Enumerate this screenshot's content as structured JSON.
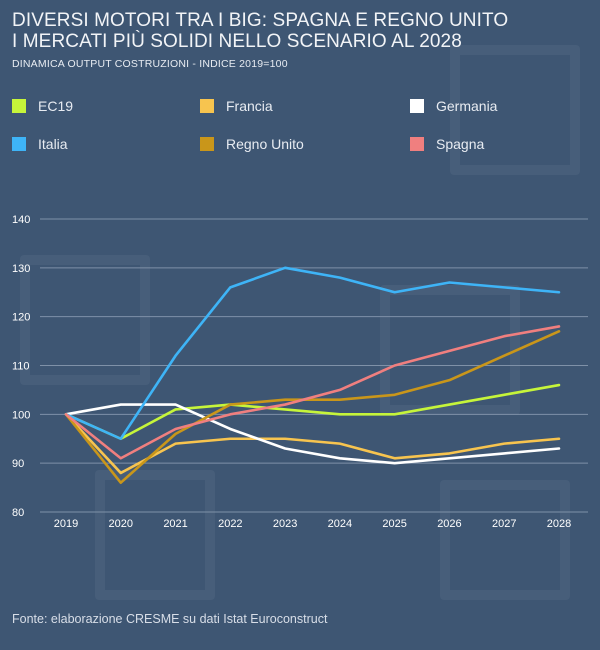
{
  "header": {
    "title_line1": "DIVERSI MOTORI TRA I BIG: SPAGNA E REGNO UNITO",
    "title_line2": "I MERCATI PIÙ SOLIDI NELLO SCENARIO AL 2028",
    "subtitle": "DINAMICA OUTPUT COSTRUZIONI - INDICE 2019=100"
  },
  "source": "Fonte: elaborazione CRESME su dati Istat Euroconstruct",
  "colors": {
    "background": "#3e5673",
    "grid": "#7f91a8",
    "axis_text": "#ffffff"
  },
  "chart_data": {
    "type": "line",
    "title": "DIVERSI MOTORI TRA I BIG: SPAGNA E REGNO UNITO I MERCATI PIÙ SOLIDI NELLO SCENARIO AL 2028",
    "subtitle": "DINAMICA OUTPUT COSTRUZIONI - INDICE 2019=100",
    "x": [
      "2019",
      "2020",
      "2021",
      "2022",
      "2023",
      "2024",
      "2025",
      "2026",
      "2027",
      "2028"
    ],
    "yticks": [
      80,
      90,
      100,
      110,
      120,
      130,
      140
    ],
    "ylim": [
      80,
      140
    ],
    "grid": true,
    "legend_position": "top",
    "series": [
      {
        "name": "EC19",
        "color": "#c6f53a",
        "values": [
          100,
          95,
          101,
          102,
          101,
          100,
          100,
          102,
          104,
          106
        ]
      },
      {
        "name": "Francia",
        "color": "#f7c44f",
        "values": [
          100,
          88,
          94,
          95,
          95,
          94,
          91,
          92,
          94,
          95
        ]
      },
      {
        "name": "Germania",
        "color": "#ffffff",
        "values": [
          100,
          102,
          102,
          97,
          93,
          91,
          90,
          91,
          92,
          93
        ]
      },
      {
        "name": "Italia",
        "color": "#3eb4f7",
        "values": [
          100,
          95,
          112,
          126,
          130,
          128,
          125,
          127,
          126,
          125
        ]
      },
      {
        "name": "Regno Unito",
        "color": "#c9961a",
        "values": [
          100,
          86,
          96,
          102,
          103,
          103,
          104,
          107,
          112,
          117
        ]
      },
      {
        "name": "Spagna",
        "color": "#f07f7f",
        "values": [
          100,
          91,
          97,
          100,
          102,
          105,
          110,
          113,
          116,
          118
        ]
      }
    ]
  }
}
